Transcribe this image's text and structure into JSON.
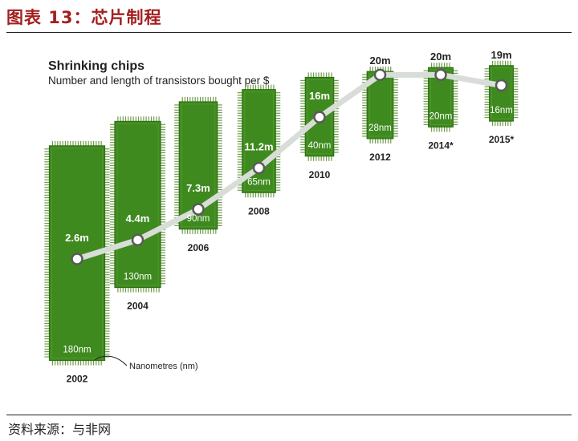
{
  "figure": {
    "title": "图表 13：芯片制程",
    "source": "资料来源：与非网"
  },
  "chart_data": {
    "type": "line",
    "title": "Shrinking chips",
    "subtitle": "Number and length of transistors bought per $",
    "x": [
      "2002",
      "2004",
      "2006",
      "2008",
      "2010",
      "2012",
      "2014*",
      "2015*"
    ],
    "series": [
      {
        "values": [
          2.6,
          4.4,
          7.3,
          11.2,
          16,
          20,
          20,
          19
        ],
        "value_labels": [
          "2.6m",
          "4.4m",
          "7.3m",
          "11.2m",
          "16m",
          "20m",
          "20m",
          "19m"
        ]
      },
      {
        "name": "Nanometres (nm)",
        "values": [
          180,
          130,
          90,
          65,
          40,
          28,
          20,
          16
        ],
        "value_labels": [
          "180nm",
          "130nm",
          "90nm",
          "65nm",
          "40nm",
          "28nm",
          "20nm",
          "16nm"
        ]
      }
    ],
    "annotation": "Nanometres (nm)",
    "colors": {
      "chip": "#3f8a1f",
      "chip_dark": "#2c6a12",
      "pins": "#6e9e4a",
      "line": "#d8ddd8",
      "node_fill": "#ffffff",
      "node_stroke": "#5a5a5a"
    }
  }
}
